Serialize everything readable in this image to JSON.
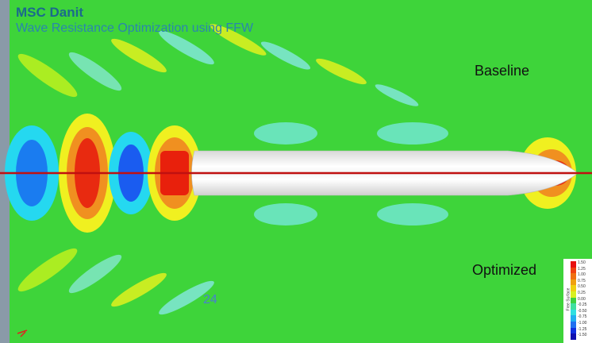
{
  "header": {
    "title": "MSC Danit",
    "subtitle": "Wave Resistance Optimization using FFW"
  },
  "labels": {
    "baseline": "Baseline",
    "optimized": "Optimized"
  },
  "page_number": "24",
  "legend": {
    "title": "Free Surface",
    "levels": [
      "1.50",
      "1.25",
      "1.00",
      "0.75",
      "0.50",
      "0.25",
      "0.00",
      "-0.25",
      "-0.50",
      "-0.75",
      "-1.00",
      "-1.25",
      "-1.50"
    ]
  }
}
